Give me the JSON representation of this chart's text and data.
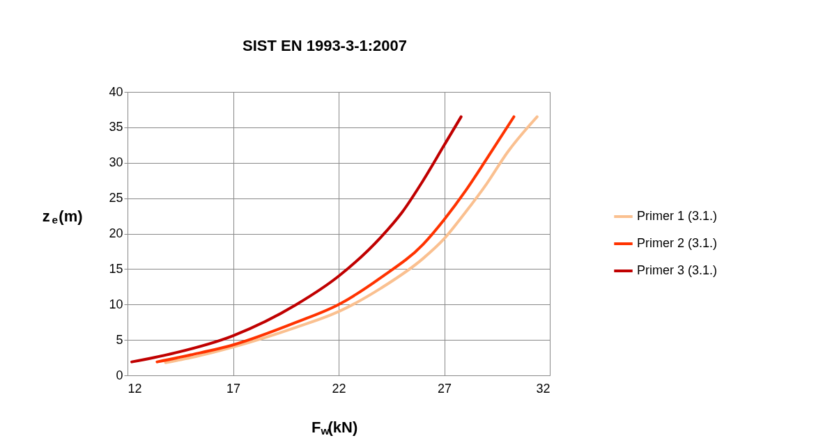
{
  "chart_data": {
    "type": "line",
    "title": "SIST EN 1993-3-1:2007",
    "xlabel": "F$_{w}$(kN)",
    "ylabel": "z$_{e}$(m)",
    "xlim": [
      12,
      32
    ],
    "xticks": [
      12,
      17,
      22,
      27,
      32
    ],
    "ylim": [
      0,
      40
    ],
    "yticks": [
      0,
      5,
      10,
      15,
      20,
      25,
      30,
      35,
      40
    ],
    "grid": true,
    "legend": "right",
    "marker": "none",
    "line_style": "solid",
    "series": [
      {
        "name": "Primer 1 (3.1.)",
        "color": "#fac090",
        "x": [
          13.8,
          15,
          17,
          20,
          22,
          24,
          26,
          27,
          28,
          29,
          30,
          31.4
        ],
        "values": [
          1.8,
          2.5,
          4.0,
          6.8,
          9,
          12.3,
          16.5,
          19.3,
          23,
          27,
          31.5,
          36.5
        ]
      },
      {
        "name": "Primer 2 (3.1.)",
        "color": "#ff3300",
        "x": [
          13.4,
          15,
          17,
          20,
          22,
          24,
          26,
          27,
          28,
          29,
          30.3
        ],
        "values": [
          1.9,
          2.9,
          4.3,
          7.5,
          10,
          13.8,
          18.5,
          22,
          26,
          30.5,
          36.5
        ]
      },
      {
        "name": "Primer 3 (3.1.)",
        "color": "#c00000",
        "x": [
          12.2,
          14,
          17,
          20,
          22,
          24,
          25,
          26,
          27,
          27.8
        ],
        "values": [
          1.9,
          3.0,
          5.6,
          10,
          14,
          19.5,
          23,
          27.5,
          32.5,
          36.5
        ]
      }
    ]
  }
}
